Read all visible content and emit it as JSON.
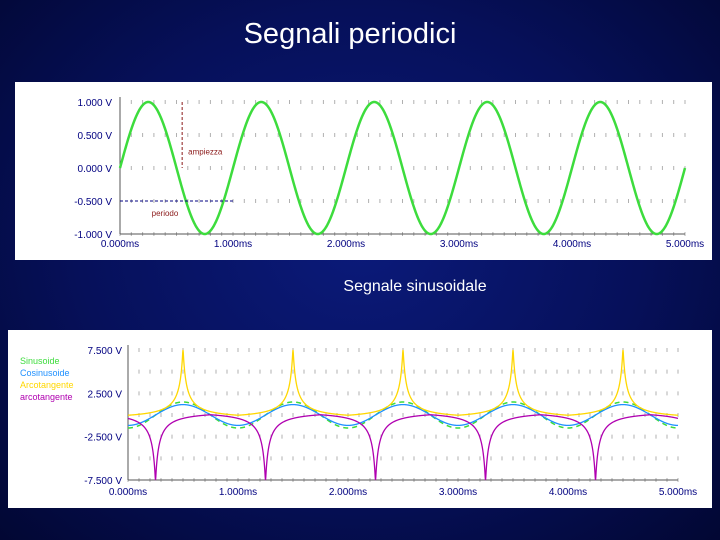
{
  "slide": {
    "title": "Segnali periodici",
    "subtitle": "Segnale sinusoidale"
  },
  "colors": {
    "background": "#06105a",
    "panel": "#ffffff",
    "axis_text": "#000080",
    "sine": "#3ddc3d",
    "annotation": "#8b1a1a",
    "period_line": "#000080",
    "cosine": "#1e90ff",
    "arctangent": "#ffd700",
    "arcotangent": "#b000b0"
  },
  "chart_data": [
    {
      "type": "line",
      "title": "",
      "xlabel": "",
      "ylabel": "",
      "x_ticks": [
        "0.000ms",
        "1.000ms",
        "2.000ms",
        "3.000ms",
        "4.000ms",
        "5.000ms"
      ],
      "y_ticks": [
        "1.000 V",
        "0.500 V",
        "0.000 V",
        "-0.500 V",
        "-1.000 V"
      ],
      "xlim": [
        0,
        5
      ],
      "ylim": [
        -1,
        1
      ],
      "grid": true,
      "series": [
        {
          "function": "sine",
          "amplitude": 1,
          "period_ms": 1,
          "phase_start": "0.000ms",
          "color": "#3ddc3d"
        }
      ],
      "annotations": [
        {
          "text": "ampiezza"
        },
        {
          "text": "periodo"
        }
      ]
    },
    {
      "type": "line",
      "title": "",
      "xlabel": "",
      "ylabel": "",
      "x_ticks": [
        "0.000ms",
        "1.000ms",
        "2.000ms",
        "3.000ms",
        "4.000ms",
        "5.000ms"
      ],
      "y_ticks": [
        "7.500 V",
        "2.500 V",
        "-2.500 V",
        "-7.500 V"
      ],
      "xlim": [
        0,
        5
      ],
      "ylim": [
        -7.5,
        7.5
      ],
      "grid": true,
      "legend": "left",
      "series": [
        {
          "name": "Sinusoide",
          "color": "#3ddc3d",
          "period_ms": 1
        },
        {
          "name": "Cosinusoide",
          "color": "#1e90ff",
          "period_ms": 1
        },
        {
          "name": "Arcotangente",
          "color": "#ffd700",
          "period_ms": 1
        },
        {
          "name": "arcotangente",
          "color": "#b000b0",
          "period_ms": 1
        }
      ]
    }
  ]
}
